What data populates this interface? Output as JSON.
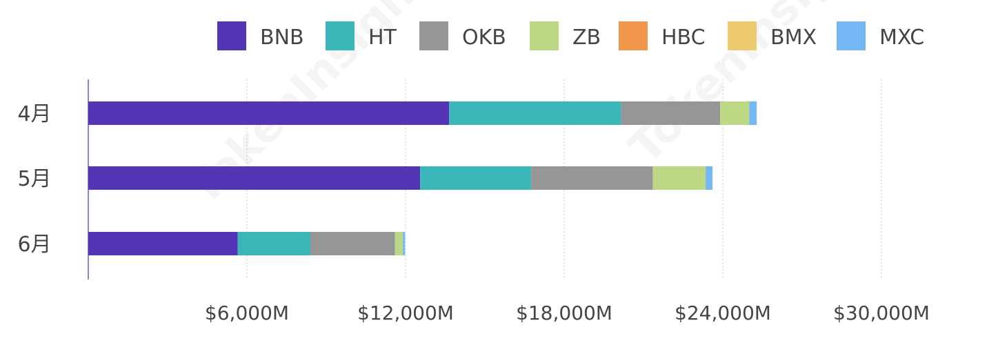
{
  "chart_data": {
    "type": "bar",
    "orientation": "horizontal",
    "stacked": true,
    "categories": [
      "4月",
      "5月",
      "6月"
    ],
    "series": [
      {
        "name": "BNB",
        "color": "#5435B5",
        "values": [
          13650,
          12550,
          5650
        ]
      },
      {
        "name": "HT",
        "color": "#3BB7BA",
        "values": [
          6500,
          4200,
          2750
        ]
      },
      {
        "name": "OKB",
        "color": "#969696",
        "values": [
          3750,
          4600,
          3200
        ]
      },
      {
        "name": "ZB",
        "color": "#BDD885",
        "values": [
          1100,
          2000,
          300
        ]
      },
      {
        "name": "HBC",
        "color": "#F0964A",
        "values": [
          0,
          0,
          0
        ]
      },
      {
        "name": "BMX",
        "color": "#EDCB6E",
        "values": [
          0,
          0,
          0
        ]
      },
      {
        "name": "MXC",
        "color": "#73B8F5",
        "values": [
          280,
          260,
          80
        ]
      }
    ],
    "xticks": [
      6000,
      12000,
      18000,
      24000,
      30000
    ],
    "xtick_labels": [
      "$6,000M",
      "$12,000M",
      "$18,000M",
      "$24,000M",
      "$30,000M"
    ],
    "xlim": [
      0,
      32500
    ],
    "grid": true,
    "legend_position": "top-right",
    "title": "",
    "xlabel": "",
    "ylabel": ""
  },
  "watermark": "TokenInsight"
}
